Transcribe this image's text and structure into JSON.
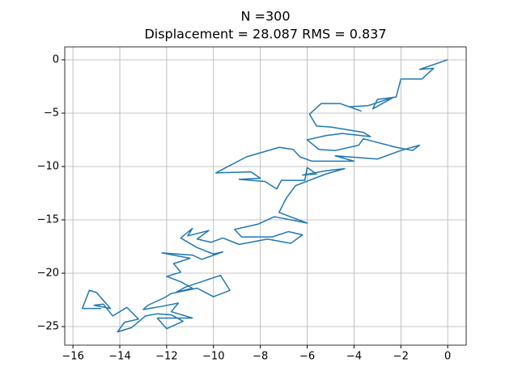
{
  "chart_data": {
    "type": "line",
    "title": "N =300",
    "subtitle": "Displacement = 28.087 RMS = 0.837",
    "color": "#1f77b4",
    "grid": true,
    "xlim": [
      -16.35,
      0.79
    ],
    "ylim": [
      -26.74,
      1.21
    ],
    "xticks": [
      {
        "value": -16,
        "label": "−16"
      },
      {
        "value": -14,
        "label": "−14"
      },
      {
        "value": -12,
        "label": "−12"
      },
      {
        "value": -10,
        "label": "−10"
      },
      {
        "value": -8,
        "label": "−8"
      },
      {
        "value": -6,
        "label": "−6"
      },
      {
        "value": -4,
        "label": "−4"
      },
      {
        "value": -2,
        "label": "−2"
      },
      0
    ],
    "yticks": [
      0,
      {
        "value": -5,
        "label": "−5"
      },
      {
        "value": -10,
        "label": "−10"
      },
      {
        "value": -15,
        "label": "−15"
      },
      {
        "value": -20,
        "label": "−20"
      },
      {
        "value": -25,
        "label": "−25"
      }
    ],
    "x": [
      0,
      -1.2,
      -0.6,
      -1.1,
      -2.0,
      -2.2,
      -3.0,
      -3.2,
      -2.3,
      -3.4,
      -4.2,
      -3.7,
      -4.6,
      -5.4,
      -5.9,
      -5.6,
      -5.0,
      -3.6,
      -3.3,
      -4.5,
      -5.2,
      -6.0,
      -5.5,
      -4.8,
      -3.8,
      -3.6,
      -2.2,
      -1.5,
      -1.2,
      -2.0,
      -3.0,
      -4.8,
      -4.0,
      -5.8,
      -6.3,
      -6.6,
      -7.2,
      -7.5,
      -8.6,
      -9.9,
      -8.4,
      -8.0,
      -8.9,
      -7.8,
      -7.3,
      -7.1,
      -6.1,
      -6.0,
      -5.6,
      -6.2,
      -5.2,
      -4.4,
      -5.2,
      -6.5,
      -6.9,
      -7.2,
      -6.0,
      -7.4,
      -8.1,
      -9.1,
      -8.8,
      -7.5,
      -6.8,
      -6.2,
      -6.7,
      -7.7,
      -8.9,
      -9.6,
      -10.1,
      -10.7,
      -10.2,
      -11.1,
      -10.9,
      -11.4,
      -10.7,
      -10.0,
      -9.6,
      -10.5,
      -10.9,
      -12.2,
      -11.0,
      -11.7,
      -11.4,
      -12.0,
      -11.4,
      -10.9,
      -11.6,
      -11.2,
      -9.7,
      -9.3,
      -10.0,
      -10.7,
      -11.8,
      -12.1,
      -12.8,
      -13.0,
      -12.2,
      -11.5,
      -11.8,
      -10.9,
      -12.4,
      -12.0,
      -11.3,
      -11.8,
      -12.4,
      -12.9,
      -13.5,
      -14.1,
      -13.8,
      -13.2,
      -13.7,
      -14.3,
      -14.7,
      -15.1,
      -14.4,
      -15.0,
      -15.3,
      -15.6,
      -14.8
    ],
    "values": [
      0,
      -0.9,
      -0.8,
      -1.8,
      -1.8,
      -3.5,
      -3.7,
      -4.6,
      -3.5,
      -4.3,
      -4.4,
      -4.8,
      -4.1,
      -4.1,
      -5.1,
      -6.2,
      -6.3,
      -6.8,
      -7.2,
      -6.9,
      -7.1,
      -7.5,
      -8.4,
      -8.5,
      -8.0,
      -7.4,
      -8.2,
      -8.5,
      -8.0,
      -8.5,
      -9.3,
      -9.0,
      -9.5,
      -9.5,
      -9.1,
      -8.4,
      -8.2,
      -8.4,
      -9.1,
      -10.6,
      -10.5,
      -11.1,
      -11.2,
      -11.4,
      -12.1,
      -11.3,
      -11.3,
      -10.1,
      -10.7,
      -10.8,
      -10.4,
      -10.2,
      -10.7,
      -11.8,
      -13.0,
      -14.3,
      -15.3,
      -14.7,
      -15.4,
      -15.9,
      -16.6,
      -16.6,
      -16.1,
      -16.4,
      -17.2,
      -16.8,
      -17.3,
      -16.7,
      -17.1,
      -16.8,
      -16.0,
      -16.5,
      -15.8,
      -16.7,
      -17.6,
      -18.2,
      -18.0,
      -18.7,
      -18.3,
      -18.1,
      -18.6,
      -19.1,
      -19.9,
      -20.3,
      -20.8,
      -21.4,
      -21.8,
      -21.3,
      -20.2,
      -21.6,
      -22.2,
      -21.4,
      -21.9,
      -22.3,
      -23.0,
      -23.4,
      -23.1,
      -22.8,
      -23.6,
      -24.2,
      -24.2,
      -25.2,
      -24.5,
      -23.9,
      -23.8,
      -24.0,
      -25.1,
      -25.5,
      -24.6,
      -24.3,
      -23.2,
      -24.0,
      -22.9,
      -23.0,
      -23.3,
      -21.8,
      -21.6,
      -23.3,
      -23.3
    ]
  }
}
